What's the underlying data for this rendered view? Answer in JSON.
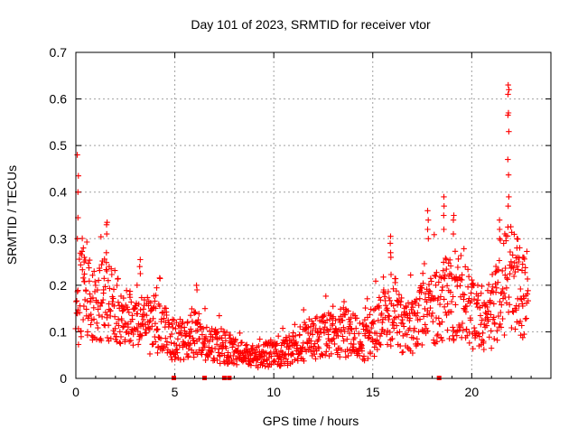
{
  "chart_data": {
    "type": "scatter",
    "title": "Day 101 of 2023, SRMTID for receiver vtor",
    "xlabel": "GPS time / hours",
    "ylabel": "SRMTID / TECUs",
    "xlim": [
      0,
      24
    ],
    "ylim": [
      0,
      0.7
    ],
    "xticks": [
      0,
      5,
      10,
      15,
      20
    ],
    "xtick_labels": [
      "0",
      "5",
      "10",
      "15",
      "20"
    ],
    "yticks": [
      0,
      0.1,
      0.2,
      0.3,
      0.4,
      0.5,
      0.6,
      0.7
    ],
    "ytick_labels": [
      "0",
      "0.1",
      "0.2",
      "0.3",
      "0.4",
      "0.5",
      "0.6",
      "0.7"
    ],
    "grid": true,
    "marker": "plus",
    "color": "#ff0000",
    "trend": {
      "x": [
        0,
        0.3,
        0.6,
        1.0,
        1.5,
        2.0,
        2.5,
        3.0,
        3.5,
        4.0,
        4.5,
        5.0,
        5.5,
        6.0,
        6.5,
        7.0,
        7.5,
        8.0,
        8.5,
        9.0,
        9.5,
        10.0,
        10.5,
        11.0,
        11.5,
        12.0,
        12.5,
        13.0,
        13.5,
        14.0,
        14.5,
        15.0,
        15.5,
        16.0,
        16.5,
        17.0,
        17.5,
        18.0,
        18.5,
        19.0,
        19.5,
        20.0,
        20.5,
        21.0,
        21.5,
        22.0,
        22.5,
        23.0
      ],
      "y": [
        0.12,
        0.2,
        0.2,
        0.15,
        0.18,
        0.15,
        0.12,
        0.14,
        0.11,
        0.12,
        0.11,
        0.08,
        0.09,
        0.1,
        0.08,
        0.07,
        0.07,
        0.06,
        0.05,
        0.045,
        0.05,
        0.055,
        0.06,
        0.065,
        0.08,
        0.085,
        0.1,
        0.1,
        0.1,
        0.09,
        0.08,
        0.1,
        0.12,
        0.15,
        0.12,
        0.11,
        0.14,
        0.14,
        0.16,
        0.18,
        0.17,
        0.14,
        0.13,
        0.14,
        0.2,
        0.22,
        0.18,
        0.14
      ]
    },
    "spikes": [
      {
        "x": 0.1,
        "values": [
          0.48,
          0.435,
          0.4,
          0.345,
          0.3
        ]
      },
      {
        "x": 0.4,
        "values": [
          0.28,
          0.26,
          0.25
        ]
      },
      {
        "x": 1.55,
        "values": [
          0.335,
          0.33,
          0.31,
          0.27
        ]
      },
      {
        "x": 3.25,
        "values": [
          0.255,
          0.24,
          0.225
        ]
      },
      {
        "x": 6.1,
        "values": [
          0.2,
          0.19
        ]
      },
      {
        "x": 15.9,
        "values": [
          0.305,
          0.29,
          0.27,
          0.26
        ]
      },
      {
        "x": 17.8,
        "values": [
          0.36,
          0.34,
          0.32,
          0.3
        ]
      },
      {
        "x": 18.6,
        "values": [
          0.39,
          0.37,
          0.35,
          0.32
        ]
      },
      {
        "x": 19.1,
        "values": [
          0.35,
          0.34,
          0.31
        ]
      },
      {
        "x": 21.4,
        "values": [
          0.34,
          0.32,
          0.3
        ]
      },
      {
        "x": 21.85,
        "values": [
          0.63,
          0.62,
          0.61,
          0.57,
          0.565,
          0.53,
          0.47,
          0.39,
          0.37
        ]
      },
      {
        "x": 22.3,
        "values": [
          0.3,
          0.28,
          0.26
        ]
      },
      {
        "x": 22.6,
        "values": [
          0.26,
          0.245
        ]
      }
    ],
    "zero_points_x": [
      4.95,
      6.5,
      7.5,
      7.75,
      18.35
    ],
    "point_count": 1400
  }
}
